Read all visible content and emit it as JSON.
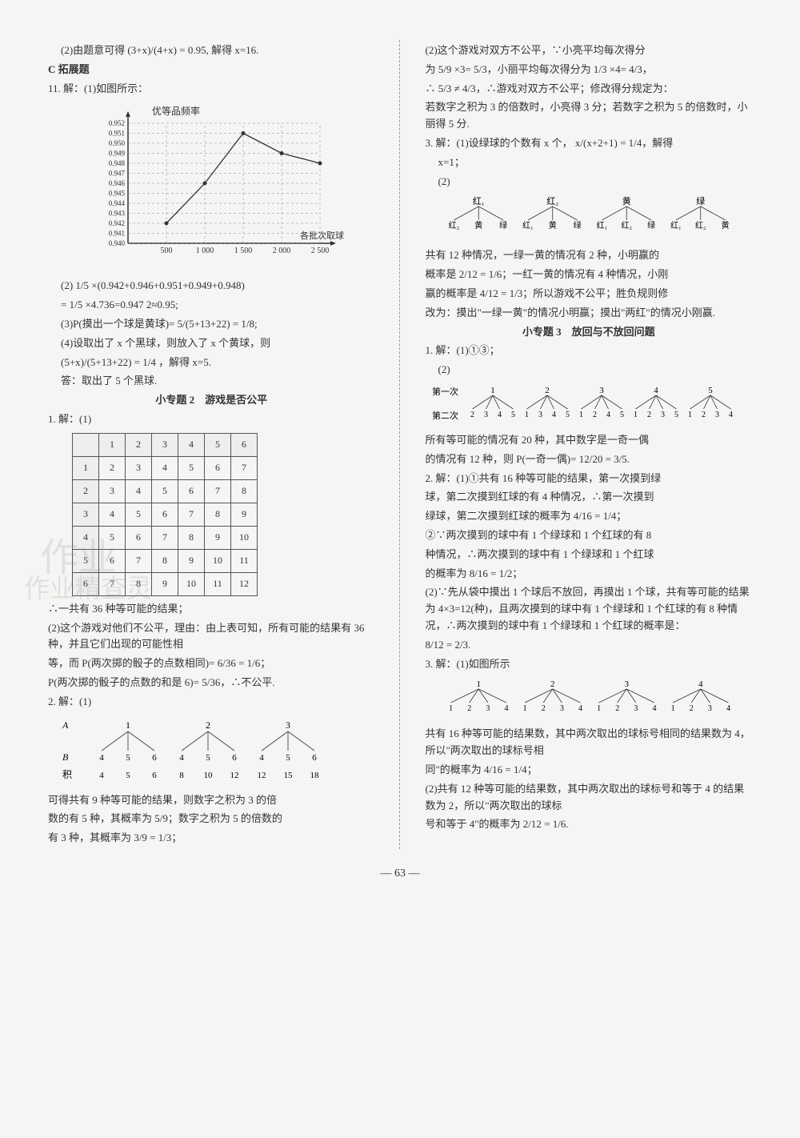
{
  "page_number": "— 63 —",
  "left": {
    "item_10_2": "(2)由题意可得 (3+x)/(4+x) = 0.95, 解得 x=16.",
    "section_c": "C 拓展题",
    "item_11_intro": "11. 解：(1)如图所示：",
    "chart": {
      "y_label": "优等品频率",
      "x_label": "各批次取球数",
      "x_ticks": [
        "500",
        "1 000",
        "1 500",
        "2 000",
        "2 500"
      ],
      "y_ticks": [
        "0.940",
        "0.941",
        "0.942",
        "0.943",
        "0.944",
        "0.945",
        "0.946",
        "0.947",
        "0.948",
        "0.949",
        "0.950",
        "0.951",
        "0.952"
      ],
      "points": [
        {
          "x": 0,
          "y": 0.942
        },
        {
          "x": 1,
          "y": 0.946
        },
        {
          "x": 2,
          "y": 0.951
        },
        {
          "x": 3,
          "y": 0.949
        },
        {
          "x": 4,
          "y": 0.948
        }
      ],
      "line_color": "#333333",
      "grid_color": "#888888",
      "background": "#f5f5f3"
    },
    "item_11_2a": "(2) 1/5 ×(0.942+0.946+0.951+0.949+0.948)",
    "item_11_2b": "= 1/5 ×4.736=0.947 2≈0.95;",
    "item_11_3": "(3)P(摸出一个球是黄球)= 5/(5+13+22) = 1/8;",
    "item_11_4a": "(4)设取出了 x 个黑球，则放入了 x 个黄球，则",
    "item_11_4b": "(5+x)/(5+13+22) = 1/4 ，解得 x=5.",
    "item_11_4c": "答：取出了 5 个黑球.",
    "topic2_title": "小专题 2　游戏是否公平",
    "topic2_1_intro": "1. 解：(1)",
    "table": {
      "headers": [
        "",
        "1",
        "2",
        "3",
        "4",
        "5",
        "6"
      ],
      "rows": [
        [
          "1",
          "2",
          "3",
          "4",
          "5",
          "6",
          "7"
        ],
        [
          "2",
          "3",
          "4",
          "5",
          "6",
          "7",
          "8"
        ],
        [
          "3",
          "4",
          "5",
          "6",
          "7",
          "8",
          "9"
        ],
        [
          "4",
          "5",
          "6",
          "7",
          "8",
          "9",
          "10"
        ],
        [
          "5",
          "6",
          "7",
          "8",
          "9",
          "10",
          "11"
        ],
        [
          "6",
          "7",
          "8",
          "9",
          "10",
          "11",
          "12"
        ]
      ]
    },
    "topic2_1a": "∴一共有 36 种等可能的结果；",
    "topic2_1b": "(2)这个游戏对他们不公平，理由：由上表可知，所有可能的结果有 36 种，并且它们出现的可能性相",
    "topic2_1c": "等，而 P(两次掷的骰子的点数相同)= 6/36 = 1/6；",
    "topic2_1d": "P(两次掷的骰子的点数的和是 6)= 5/36，∴不公平.",
    "topic2_2_intro": "2. 解：(1)",
    "tree1": {
      "row_a": "A",
      "top": [
        "1",
        "2",
        "3"
      ],
      "row_b": "B",
      "mid": [
        "4",
        "5",
        "6",
        "4",
        "5",
        "6",
        "4",
        "5",
        "6"
      ],
      "row_prod": "积",
      "bot": [
        "4",
        "5",
        "6",
        "8",
        "10",
        "12",
        "12",
        "15",
        "18"
      ]
    },
    "topic2_2a": "可得共有 9 种等可能的结果，则数字之积为 3 的倍",
    "topic2_2b": "数的有 5 种，其概率为 5/9；数字之积为 5 的倍数的",
    "topic2_2c": "有 3 种，其概率为 3/9 = 1/3；"
  },
  "right": {
    "r1a": "(2)这个游戏对双方不公平，∵小亮平均每次得分",
    "r1b": "为 5/9 ×3= 5/3，小丽平均每次得分为 1/3 ×4= 4/3，",
    "r1c": "∴ 5/3 ≠ 4/3，∴游戏对双方不公平；修改得分规定为：",
    "r1d": "若数字之积为 3 的倍数时，小亮得 3 分；若数字之积为 5 的倍数时，小丽得 5 分.",
    "r3_intro": "3. 解：(1)设绿球的个数有 x 个， x/(x+2+1) = 1/4，解得",
    "r3a": "x=1；",
    "r3b": "(2)",
    "tree2": {
      "top": [
        "红₁",
        "红₂",
        "黄",
        "绿"
      ],
      "leaves": [
        "红₂",
        "黄",
        "绿",
        "红₁",
        "黄",
        "绿",
        "红₁",
        "红₂",
        "绿",
        "红₁",
        "红₂",
        "黄"
      ]
    },
    "r3c": "共有 12 种情况，一绿一黄的情况有 2 种，小明赢的",
    "r3d": "概率是 2/12 = 1/6；一红一黄的情况有 4 种情况，小刚",
    "r3e": "赢的概率是 4/12 = 1/3；所以游戏不公平；胜负规则修",
    "r3f": "改为：摸出\"一绿一黄\"的情况小明赢；摸出\"两红\"的情况小刚赢.",
    "topic3_title": "小专题 3　放回与不放回问题",
    "t3_1a": "1. 解：(1)①③；",
    "t3_1b": "(2)",
    "tree3": {
      "row1": "第一次",
      "top": [
        "1",
        "2",
        "3",
        "4",
        "5"
      ],
      "row2": "第二次",
      "leaves": [
        "2",
        "3",
        "4",
        "5",
        "1",
        "3",
        "4",
        "5",
        "1",
        "2",
        "4",
        "5",
        "1",
        "2",
        "3",
        "5",
        "1",
        "2",
        "3",
        "4"
      ]
    },
    "t3_1c": "所有等可能的情况有 20 种，其中数字是一奇一偶",
    "t3_1d": "的情况有 12 种，则 P(一奇一偶)= 12/20 = 3/5.",
    "t3_2a": "2. 解：(1)①共有 16 种等可能的结果，第一次摸到绿",
    "t3_2b": "球，第二次摸到红球的有 4 种情况，∴第一次摸到",
    "t3_2c": "绿球，第二次摸到红球的概率为 4/16 = 1/4；",
    "t3_2d": "②∵两次摸到的球中有 1 个绿球和 1 个红球的有 8",
    "t3_2e": "种情况，∴两次摸到的球中有 1 个绿球和 1 个红球",
    "t3_2f": "的概率为 8/16 = 1/2；",
    "t3_2g": "(2)∵先从袋中摸出 1 个球后不放回，再摸出 1 个球，共有等可能的结果为 4×3=12(种)，且两次摸到的球中有 1 个绿球和 1 个红球的有 8 种情况，∴两次摸到的球中有 1 个绿球和 1 个红球的概率是：",
    "t3_2h": "8/12 = 2/3.",
    "t3_3a": "3. 解：(1)如图所示",
    "tree4": {
      "top": [
        "1",
        "2",
        "3",
        "4"
      ],
      "leaves": [
        "1",
        "2",
        "3",
        "4",
        "1",
        "2",
        "3",
        "4",
        "1",
        "2",
        "3",
        "4",
        "1",
        "2",
        "3",
        "4"
      ]
    },
    "t3_3b": "共有 16 种等可能的结果数，其中两次取出的球标号相同的结果数为 4，所以\"两次取出的球标号相",
    "t3_3c": "同\"的概率为 4/16 = 1/4；",
    "t3_3d": "(2)共有 12 种等可能的结果数，其中两次取出的球标号和等于 4 的结果数为 2，所以\"两次取出的球标",
    "t3_3e": "号和等于 4\"的概率为 2/12 = 1/6."
  }
}
